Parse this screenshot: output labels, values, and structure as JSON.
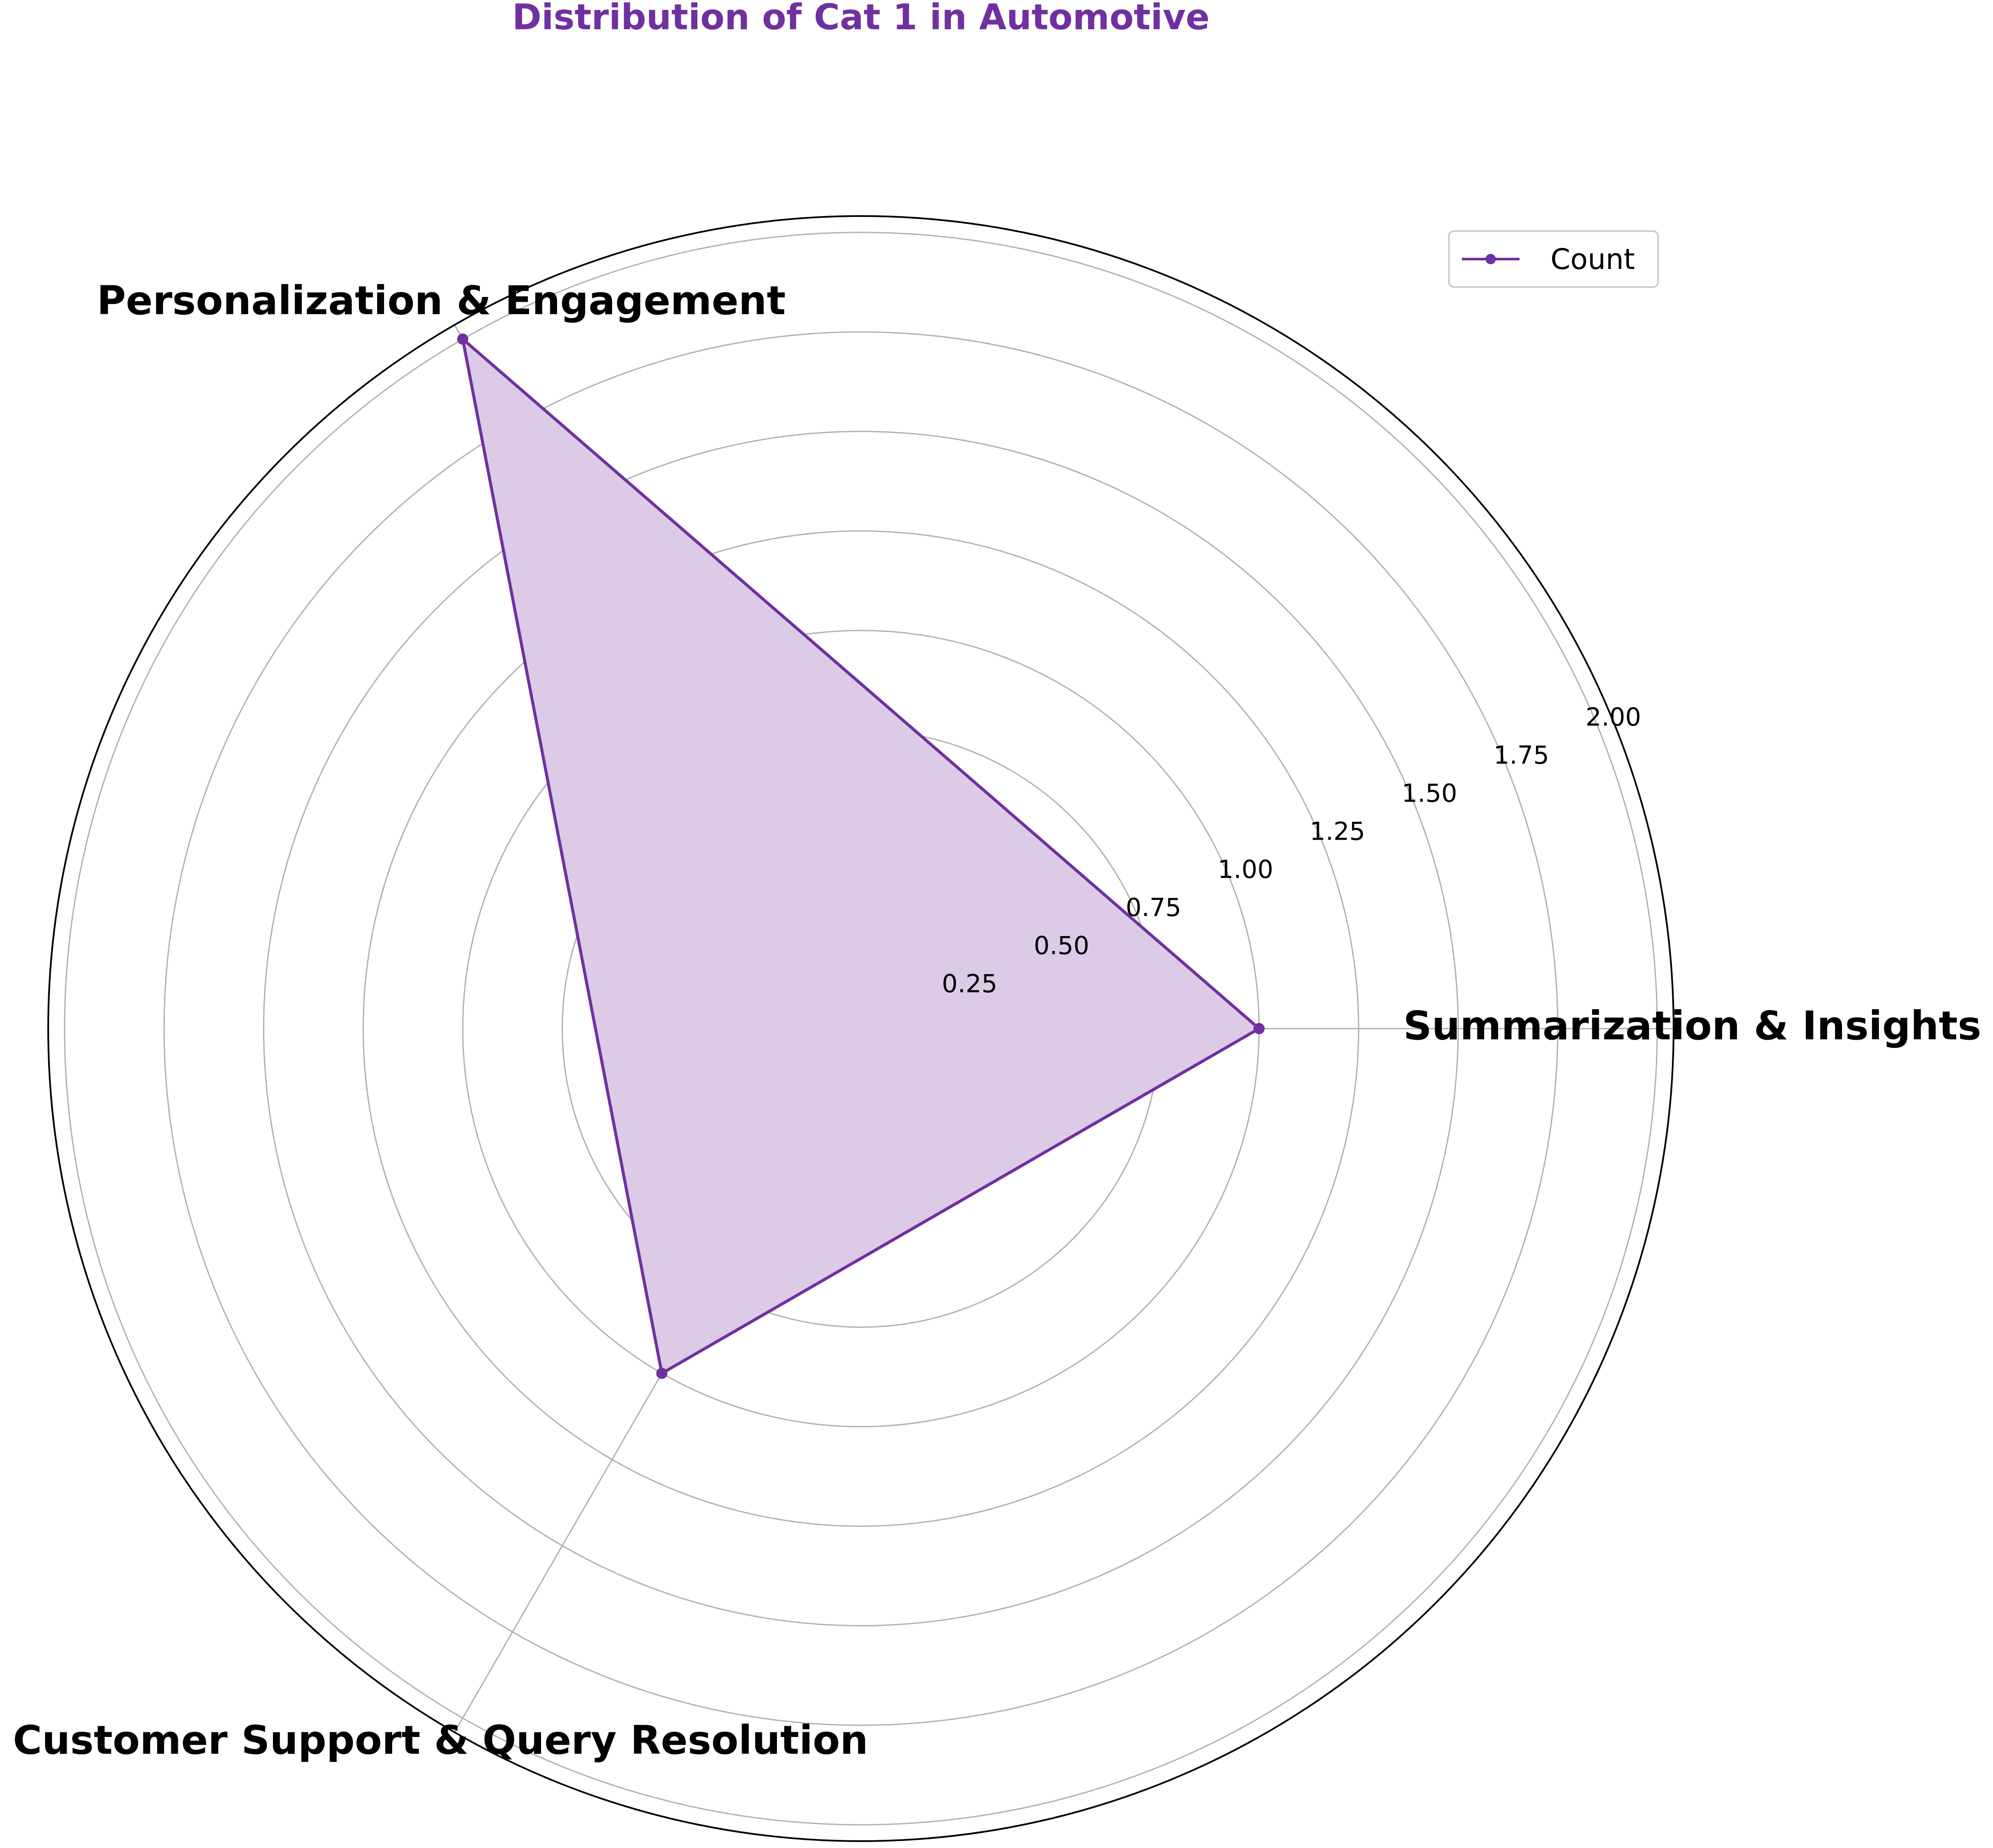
{
  "chart_data": {
    "type": "radar",
    "title": "Distribution of Cat 1 in Automotive",
    "categories": [
      "Summarization & Insights",
      "Personalization & Engagement",
      "Customer Support & Query Resolution"
    ],
    "series": [
      {
        "name": "Count",
        "values": [
          1,
          2,
          1
        ]
      }
    ],
    "rlim": [
      0,
      2.0
    ],
    "r_ticks": [
      0.25,
      0.5,
      0.75,
      1.0,
      1.25,
      1.5,
      1.75,
      2.0
    ],
    "r_tick_labels": [
      "0.25",
      "0.50",
      "0.75",
      "1.00",
      "1.25",
      "1.50",
      "1.75",
      "2.00"
    ],
    "grid": true,
    "legend_position": "top-right",
    "colors": {
      "series_line": "#7030A0",
      "series_fill": "#DCCBE6",
      "title": "#7030A0",
      "grid": "#B0B0B0",
      "outer_frame": "#000000"
    }
  }
}
